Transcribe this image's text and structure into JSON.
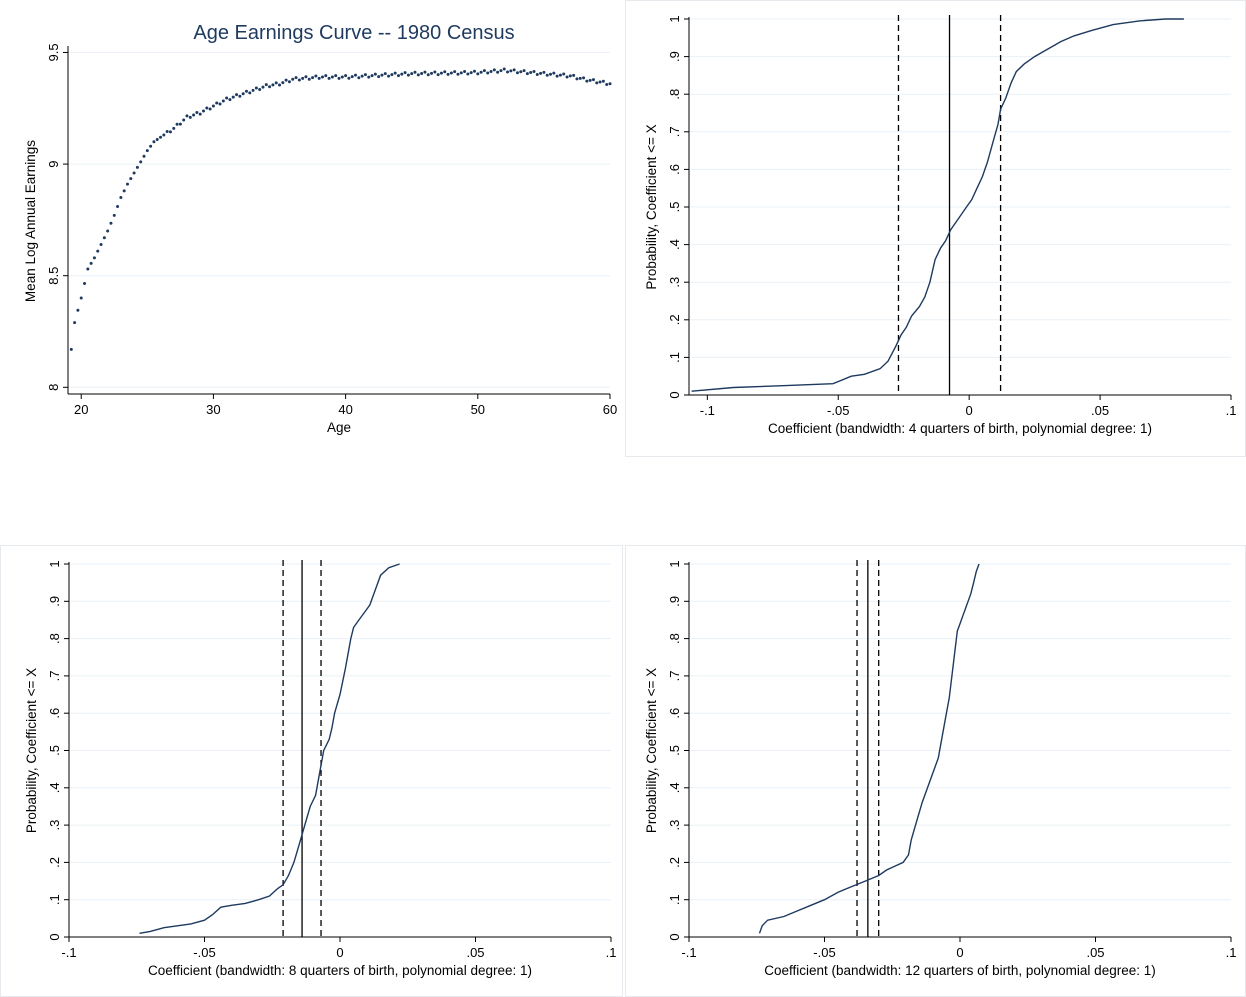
{
  "chart_data": [
    {
      "type": "scatter",
      "title": "Age Earnings Curve -- 1980 Census",
      "xlabel": "Age",
      "ylabel": "Mean Log Annual Earnings",
      "xlim": [
        19,
        60
      ],
      "ylim": [
        7.97,
        9.52
      ],
      "x_ticks": [
        "20",
        "30",
        "40",
        "50",
        "60"
      ],
      "y_ticks": [
        "8",
        "8.5",
        "9",
        "9.5"
      ],
      "grid": true,
      "color": "#1e3a5f",
      "anchors": [
        [
          19.25,
          8.17
        ],
        [
          19.5,
          8.29
        ],
        [
          20,
          8.4
        ],
        [
          20.5,
          8.53
        ],
        [
          21,
          8.58
        ],
        [
          21.5,
          8.64
        ],
        [
          22,
          8.7
        ],
        [
          22.5,
          8.77
        ],
        [
          23,
          8.85
        ],
        [
          23.5,
          8.91
        ],
        [
          24,
          8.96
        ],
        [
          24.5,
          9.01
        ],
        [
          25,
          9.06
        ],
        [
          25.5,
          9.1
        ],
        [
          26,
          9.12
        ],
        [
          27,
          9.16
        ],
        [
          28,
          9.21
        ],
        [
          29,
          9.23
        ],
        [
          30,
          9.26
        ],
        [
          31,
          9.29
        ],
        [
          32,
          9.31
        ],
        [
          33,
          9.33
        ],
        [
          34,
          9.35
        ],
        [
          35,
          9.36
        ],
        [
          36,
          9.38
        ],
        [
          38,
          9.39
        ],
        [
          40,
          9.39
        ],
        [
          45,
          9.405
        ],
        [
          50,
          9.41
        ],
        [
          52,
          9.42
        ],
        [
          55,
          9.405
        ],
        [
          57,
          9.395
        ],
        [
          58,
          9.38
        ],
        [
          59,
          9.37
        ],
        [
          60,
          9.36
        ]
      ]
    },
    {
      "type": "line",
      "title": "",
      "xlabel": "Coefficient (bandwidth: 4 quarters of birth, polynomial degree: 1)",
      "ylabel": "Probability, Coefficient <= X",
      "xlim": [
        -0.107,
        0.1
      ],
      "ylim": [
        0,
        1
      ],
      "x_ticks": [
        "-.1",
        "-.05",
        "0",
        ".05",
        ".1"
      ],
      "y_ticks": [
        "0",
        ".1",
        ".2",
        ".3",
        ".4",
        ".5",
        ".6",
        ".7",
        ".8",
        ".9",
        "1"
      ],
      "grid": true,
      "color": "#1e3a5f",
      "vlines": {
        "solid": -0.0075,
        "dashed": [
          -0.027,
          0.012
        ]
      },
      "x": [
        -0.106,
        -0.09,
        -0.07,
        -0.052,
        -0.045,
        -0.04,
        -0.034,
        -0.031,
        -0.028,
        -0.026,
        -0.024,
        -0.022,
        -0.019,
        -0.017,
        -0.015,
        -0.013,
        -0.011,
        -0.009,
        -0.007,
        -0.005,
        -0.003,
        -0.001,
        0.001,
        0.003,
        0.005,
        0.007,
        0.009,
        0.011,
        0.012,
        0.014,
        0.016,
        0.018,
        0.021,
        0.025,
        0.03,
        0.035,
        0.04,
        0.047,
        0.055,
        0.065,
        0.075,
        0.082
      ],
      "y": [
        0.01,
        0.02,
        0.025,
        0.03,
        0.05,
        0.055,
        0.07,
        0.09,
        0.13,
        0.16,
        0.18,
        0.21,
        0.235,
        0.26,
        0.3,
        0.36,
        0.39,
        0.41,
        0.44,
        0.46,
        0.48,
        0.5,
        0.52,
        0.55,
        0.58,
        0.62,
        0.67,
        0.72,
        0.76,
        0.79,
        0.83,
        0.86,
        0.88,
        0.9,
        0.92,
        0.94,
        0.955,
        0.97,
        0.985,
        0.995,
        1.0,
        1.0
      ]
    },
    {
      "type": "line",
      "title": "",
      "xlabel": "Coefficient (bandwidth: 8 quarters of birth, polynomial degree: 1)",
      "ylabel": "Probability, Coefficient <= X",
      "xlim": [
        -0.1,
        0.1
      ],
      "ylim": [
        0,
        1
      ],
      "x_ticks": [
        "-.1",
        "-.05",
        "0",
        ".05",
        ".1"
      ],
      "y_ticks": [
        "0",
        ".1",
        ".2",
        ".3",
        ".4",
        ".5",
        ".6",
        ".7",
        ".8",
        ".9",
        "1"
      ],
      "grid": true,
      "color": "#1e3a5f",
      "vlines": {
        "solid": -0.014,
        "dashed": [
          -0.021,
          -0.007
        ]
      },
      "x": [
        -0.074,
        -0.07,
        -0.065,
        -0.06,
        -0.055,
        -0.05,
        -0.047,
        -0.044,
        -0.04,
        -0.035,
        -0.03,
        -0.026,
        -0.023,
        -0.021,
        -0.019,
        -0.017,
        -0.015,
        -0.013,
        -0.011,
        -0.009,
        -0.008,
        -0.007,
        -0.006,
        -0.004,
        -0.003,
        -0.002,
        0.0,
        0.002,
        0.004,
        0.005,
        0.007,
        0.009,
        0.011,
        0.013,
        0.015,
        0.018,
        0.022
      ],
      "y": [
        0.01,
        0.015,
        0.025,
        0.03,
        0.035,
        0.045,
        0.06,
        0.08,
        0.085,
        0.09,
        0.1,
        0.11,
        0.13,
        0.14,
        0.165,
        0.2,
        0.25,
        0.3,
        0.35,
        0.38,
        0.42,
        0.46,
        0.5,
        0.53,
        0.56,
        0.6,
        0.65,
        0.72,
        0.8,
        0.83,
        0.85,
        0.87,
        0.89,
        0.93,
        0.97,
        0.99,
        1.0
      ]
    },
    {
      "type": "line",
      "title": "",
      "xlabel": "Coefficient (bandwidth: 12 quarters of birth, polynomial degree: 1)",
      "ylabel": "Probability, Coefficient <= X",
      "xlim": [
        -0.1,
        0.1
      ],
      "ylim": [
        0,
        1
      ],
      "x_ticks": [
        "-.1",
        "-.05",
        "0",
        ".05",
        ".1"
      ],
      "y_ticks": [
        "0",
        ".1",
        ".2",
        ".3",
        ".4",
        ".5",
        ".6",
        ".7",
        ".8",
        ".9",
        "1"
      ],
      "grid": true,
      "color": "#1e3a5f",
      "vlines": {
        "solid": -0.034,
        "dashed": [
          -0.038,
          -0.03
        ]
      },
      "x": [
        -0.074,
        -0.073,
        -0.071,
        -0.065,
        -0.06,
        -0.055,
        -0.05,
        -0.045,
        -0.04,
        -0.035,
        -0.03,
        -0.027,
        -0.024,
        -0.021,
        -0.019,
        -0.018,
        -0.016,
        -0.014,
        -0.012,
        -0.01,
        -0.008,
        -0.007,
        -0.006,
        -0.005,
        -0.004,
        -0.003,
        -0.002,
        -0.001,
        0.0,
        0.001,
        0.002,
        0.003,
        0.004,
        0.005,
        0.006,
        0.007
      ],
      "y": [
        0.01,
        0.03,
        0.045,
        0.055,
        0.07,
        0.085,
        0.1,
        0.12,
        0.135,
        0.15,
        0.165,
        0.18,
        0.19,
        0.2,
        0.22,
        0.26,
        0.31,
        0.36,
        0.4,
        0.44,
        0.48,
        0.52,
        0.56,
        0.6,
        0.64,
        0.7,
        0.76,
        0.82,
        0.84,
        0.86,
        0.88,
        0.9,
        0.92,
        0.95,
        0.98,
        1.0
      ]
    }
  ]
}
